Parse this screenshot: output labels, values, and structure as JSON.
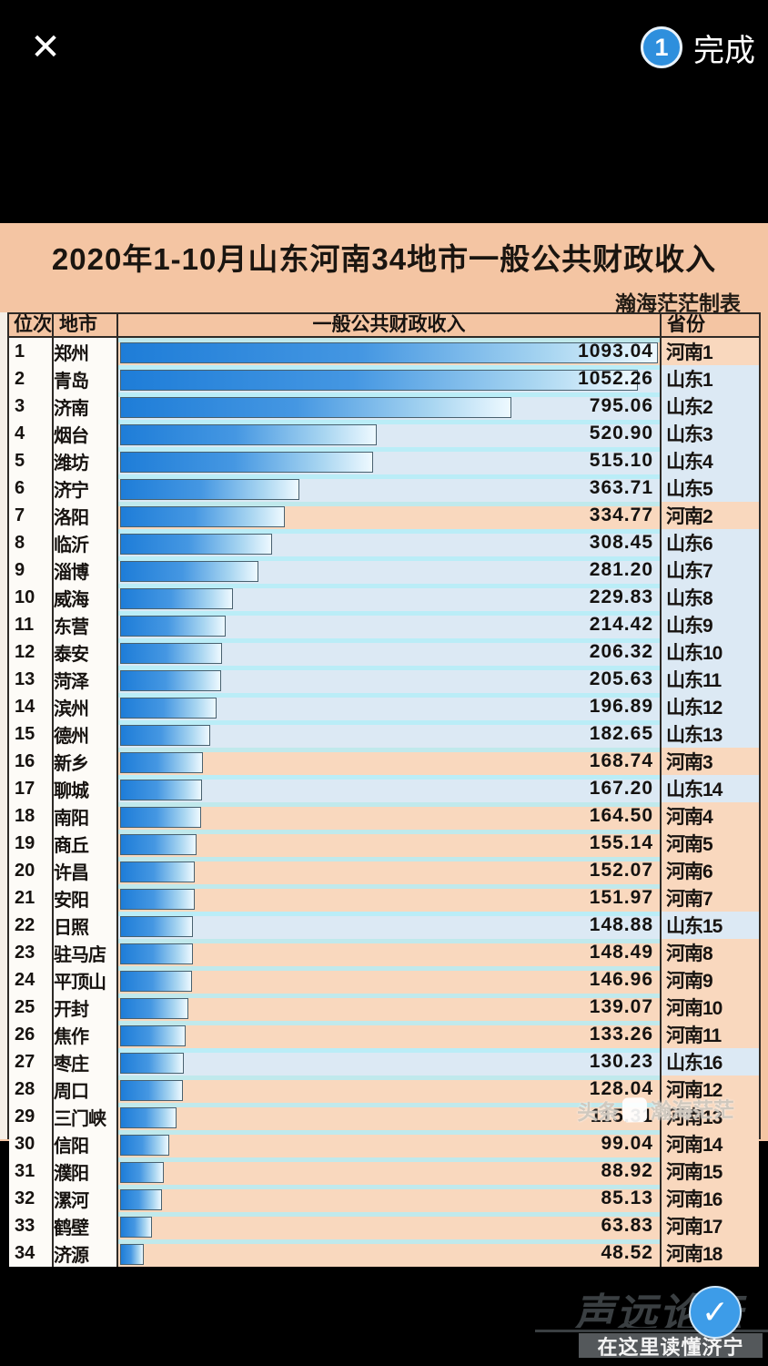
{
  "ui": {
    "close_glyph": "✕",
    "selection_badge": "1",
    "done_label": "完成",
    "check_glyph": "✓"
  },
  "chart_data": {
    "type": "bar",
    "orientation": "horizontal",
    "title": "2020年1-10月山东河南34地市一般公共财政收入",
    "credit": "瀚海茫茫制表",
    "xlim": [
      0,
      1093.04
    ],
    "legend": "none",
    "header": {
      "rank": "位次",
      "city": "地市",
      "revenue": "一般公共财政收入",
      "province": "省份"
    },
    "rows": [
      {
        "rank": 1,
        "city": "郑州",
        "value": 1093.04,
        "label": "1093.04",
        "province": "河南1",
        "group": "henan"
      },
      {
        "rank": 2,
        "city": "青岛",
        "value": 1052.26,
        "label": "1052.26",
        "province": "山东1",
        "group": "shandong"
      },
      {
        "rank": 3,
        "city": "济南",
        "value": 795.06,
        "label": "795.06",
        "province": "山东2",
        "group": "shandong"
      },
      {
        "rank": 4,
        "city": "烟台",
        "value": 520.9,
        "label": "520.90",
        "province": "山东3",
        "group": "shandong"
      },
      {
        "rank": 5,
        "city": "潍坊",
        "value": 515.1,
        "label": "515.10",
        "province": "山东4",
        "group": "shandong"
      },
      {
        "rank": 6,
        "city": "济宁",
        "value": 363.71,
        "label": "363.71",
        "province": "山东5",
        "group": "shandong"
      },
      {
        "rank": 7,
        "city": "洛阳",
        "value": 334.77,
        "label": "334.77",
        "province": "河南2",
        "group": "henan"
      },
      {
        "rank": 8,
        "city": "临沂",
        "value": 308.45,
        "label": "308.45",
        "province": "山东6",
        "group": "shandong"
      },
      {
        "rank": 9,
        "city": "淄博",
        "value": 281.2,
        "label": "281.20",
        "province": "山东7",
        "group": "shandong"
      },
      {
        "rank": 10,
        "city": "威海",
        "value": 229.83,
        "label": "229.83",
        "province": "山东8",
        "group": "shandong"
      },
      {
        "rank": 11,
        "city": "东营",
        "value": 214.42,
        "label": "214.42",
        "province": "山东9",
        "group": "shandong"
      },
      {
        "rank": 12,
        "city": "泰安",
        "value": 206.32,
        "label": "206.32",
        "province": "山东10",
        "group": "shandong"
      },
      {
        "rank": 13,
        "city": "菏泽",
        "value": 205.63,
        "label": "205.63",
        "province": "山东11",
        "group": "shandong"
      },
      {
        "rank": 14,
        "city": "滨州",
        "value": 196.89,
        "label": "196.89",
        "province": "山东12",
        "group": "shandong"
      },
      {
        "rank": 15,
        "city": "德州",
        "value": 182.65,
        "label": "182.65",
        "province": "山东13",
        "group": "shandong"
      },
      {
        "rank": 16,
        "city": "新乡",
        "value": 168.74,
        "label": "168.74",
        "province": "河南3",
        "group": "henan"
      },
      {
        "rank": 17,
        "city": "聊城",
        "value": 167.2,
        "label": "167.20",
        "province": "山东14",
        "group": "shandong"
      },
      {
        "rank": 18,
        "city": "南阳",
        "value": 164.5,
        "label": "164.50",
        "province": "河南4",
        "group": "henan"
      },
      {
        "rank": 19,
        "city": "商丘",
        "value": 155.14,
        "label": "155.14",
        "province": "河南5",
        "group": "henan"
      },
      {
        "rank": 20,
        "city": "许昌",
        "value": 152.07,
        "label": "152.07",
        "province": "河南6",
        "group": "henan"
      },
      {
        "rank": 21,
        "city": "安阳",
        "value": 151.97,
        "label": "151.97",
        "province": "河南7",
        "group": "henan"
      },
      {
        "rank": 22,
        "city": "日照",
        "value": 148.88,
        "label": "148.88",
        "province": "山东15",
        "group": "shandong"
      },
      {
        "rank": 23,
        "city": "驻马店",
        "value": 148.49,
        "label": "148.49",
        "province": "河南8",
        "group": "henan"
      },
      {
        "rank": 24,
        "city": "平顶山",
        "value": 146.96,
        "label": "146.96",
        "province": "河南9",
        "group": "henan"
      },
      {
        "rank": 25,
        "city": "开封",
        "value": 139.07,
        "label": "139.07",
        "province": "河南10",
        "group": "henan"
      },
      {
        "rank": 26,
        "city": "焦作",
        "value": 133.26,
        "label": "133.26",
        "province": "河南11",
        "group": "henan"
      },
      {
        "rank": 27,
        "city": "枣庄",
        "value": 130.23,
        "label": "130.23",
        "province": "山东16",
        "group": "shandong"
      },
      {
        "rank": 28,
        "city": "周口",
        "value": 128.04,
        "label": "128.04",
        "province": "河南12",
        "group": "henan"
      },
      {
        "rank": 29,
        "city": "三门峡",
        "value": 115.31,
        "label": "115.31",
        "province": "河南13",
        "group": "henan"
      },
      {
        "rank": 30,
        "city": "信阳",
        "value": 99.04,
        "label": "99.04",
        "province": "河南14",
        "group": "henan"
      },
      {
        "rank": 31,
        "city": "濮阳",
        "value": 88.92,
        "label": "88.92",
        "province": "河南15",
        "group": "henan"
      },
      {
        "rank": 32,
        "city": "漯河",
        "value": 85.13,
        "label": "85.13",
        "province": "河南16",
        "group": "henan"
      },
      {
        "rank": 33,
        "city": "鹤壁",
        "value": 63.83,
        "label": "63.83",
        "province": "河南17",
        "group": "henan"
      },
      {
        "rank": 34,
        "city": "济源",
        "value": 48.52,
        "label": "48.52",
        "province": "河南18",
        "group": "henan"
      }
    ]
  },
  "watermarks": {
    "toutiao_prefix": "头条",
    "toutiao_name": "瀚海茫茫",
    "forum_name": "声远论坛",
    "forum_tagline": "在这里读懂济宁"
  },
  "colors": {
    "accent_blue": "#2e8fdd",
    "photo_bg": "#f4c5a3",
    "henan_row": "#f9d8be",
    "shandong_row": "#dce9f4",
    "bar_start": "#1e7dd8",
    "bar_end": "#eef9ff"
  }
}
